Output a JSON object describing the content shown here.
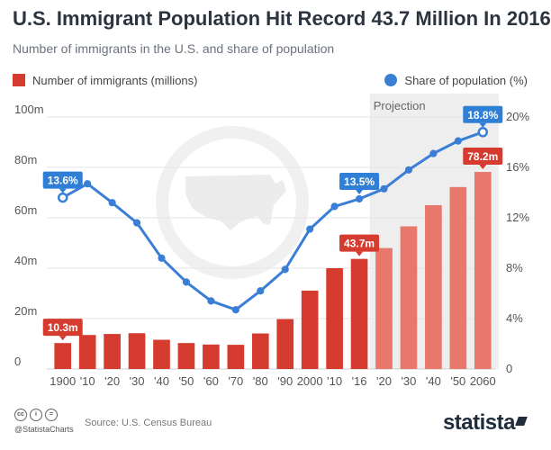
{
  "header": {
    "title": "U.S. Immigrant Population Hit Record 43.7 Million In 2016",
    "subtitle": "Number of immigrants in the U.S. and share of population"
  },
  "footer": {
    "handle": "@StatistaCharts",
    "source": "Source: U.S. Census Bureau",
    "brand": "statista"
  },
  "colors": {
    "bar": "#d63b2f",
    "bar_projection": "#e8786b",
    "line": "#3a7fd5",
    "projection_bg": "#eeeeee",
    "label_blue": "#2f7fd6",
    "label_red": "#d63b2f"
  },
  "icons": {
    "background": "us-map-icon",
    "license": "creative-commons-icon"
  },
  "chart_data": {
    "type": "bar",
    "categories": [
      "1900",
      "'10",
      "'20",
      "'30",
      "'40",
      "'50",
      "'60",
      "'70",
      "'80",
      "'90",
      "2000",
      "'10",
      "'16",
      "'20",
      "'30",
      "'40",
      "'50",
      "2060"
    ],
    "projection_label": "Projection",
    "projection_start_index": 13,
    "series": [
      {
        "name": "Number of immigrants (millions)",
        "type": "bar",
        "axis": "left",
        "values": [
          10.3,
          13.5,
          13.9,
          14.2,
          11.6,
          10.3,
          9.7,
          9.6,
          14.1,
          19.8,
          31.1,
          40.0,
          43.7,
          48.0,
          56.6,
          65.0,
          72.2,
          78.2
        ]
      },
      {
        "name": "Share of population (%)",
        "type": "line",
        "axis": "right",
        "values": [
          13.6,
          14.7,
          13.2,
          11.6,
          8.8,
          6.9,
          5.4,
          4.7,
          6.2,
          7.9,
          11.1,
          12.9,
          13.5,
          14.3,
          15.8,
          17.1,
          18.1,
          18.8
        ]
      }
    ],
    "annotations": [
      {
        "series": 0,
        "index": 0,
        "text": "10.3m"
      },
      {
        "series": 0,
        "index": 12,
        "text": "43.7m"
      },
      {
        "series": 0,
        "index": 17,
        "text": "78.2m"
      },
      {
        "series": 1,
        "index": 0,
        "text": "13.6%"
      },
      {
        "series": 1,
        "index": 12,
        "text": "13.5%"
      },
      {
        "series": 1,
        "index": 17,
        "text": "18.8%"
      }
    ],
    "yaxis_left": {
      "range": [
        0,
        100
      ],
      "ticks": [
        0,
        20,
        40,
        60,
        80,
        100
      ],
      "labels": [
        "0",
        "20m",
        "40m",
        "60m",
        "80m",
        "100m"
      ]
    },
    "yaxis_right": {
      "range": [
        0,
        20
      ],
      "ticks": [
        0,
        4,
        8,
        12,
        16,
        20
      ],
      "labels": [
        "0",
        "4%",
        "8%",
        "12%",
        "16%",
        "20%"
      ]
    },
    "grid": true,
    "legend": "top"
  }
}
